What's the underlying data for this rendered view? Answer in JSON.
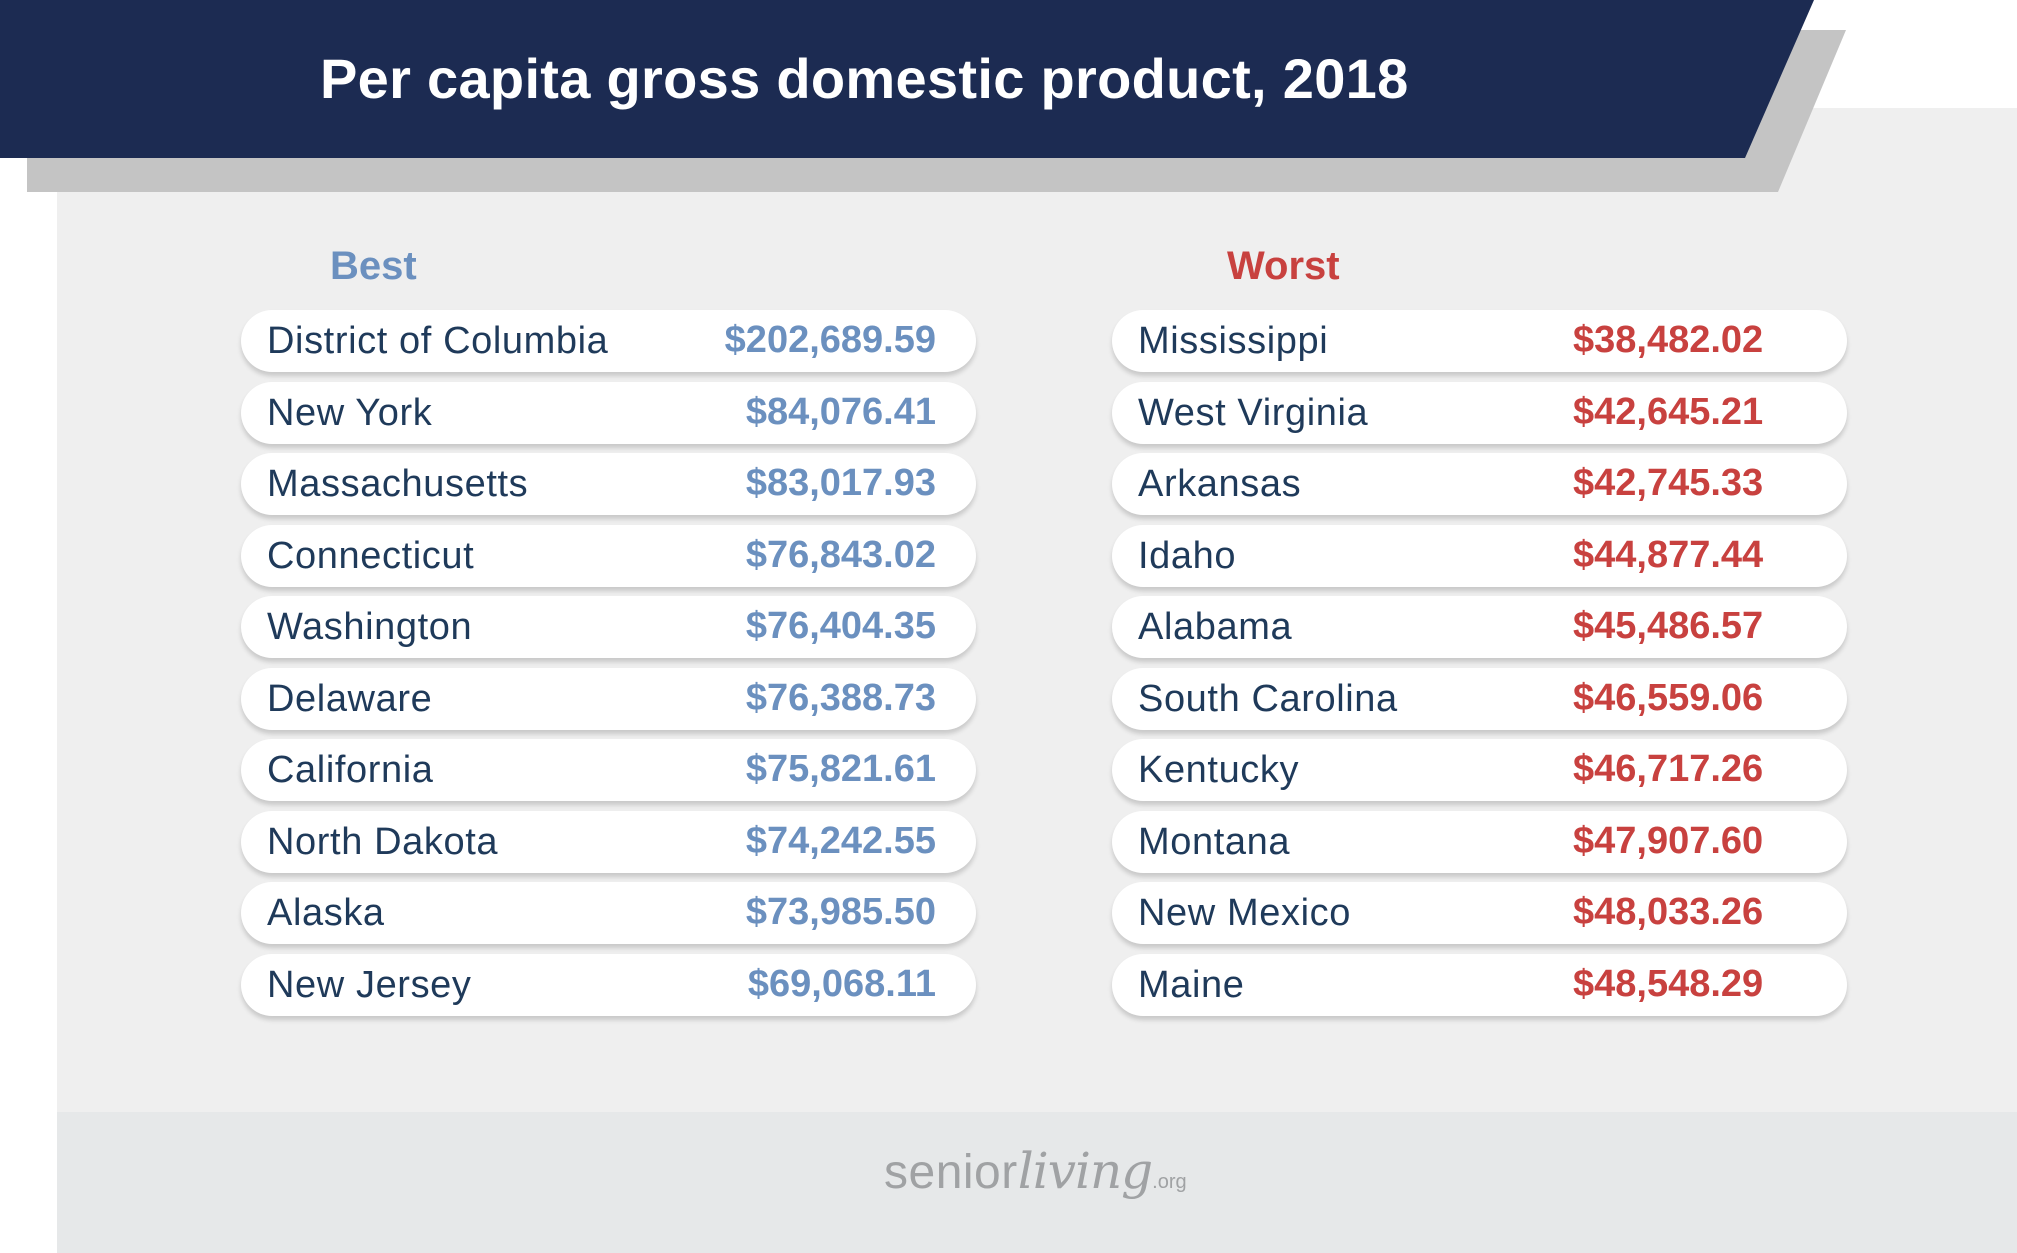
{
  "title": "Per capita gross domestic product, 2018",
  "colors": {
    "banner": "#1c2b52",
    "shadow": "#c4c4c4",
    "best": "#6b90bf",
    "worst": "#c8413f",
    "name": "#1f3a5a"
  },
  "logo": {
    "primary": "senior",
    "secondary": "living",
    "suffix": ".org"
  },
  "chart_data": {
    "type": "table",
    "title": "Per capita gross domestic product, 2018",
    "columns": [
      "Best",
      "Worst"
    ],
    "best": {
      "label": "Best",
      "rows": [
        {
          "state": "District of Columbia",
          "value": 202689.59,
          "display": "$202,689.59"
        },
        {
          "state": "New York",
          "value": 84076.41,
          "display": "$84,076.41"
        },
        {
          "state": "Massachusetts",
          "value": 83017.93,
          "display": "$83,017.93"
        },
        {
          "state": "Connecticut",
          "value": 76843.02,
          "display": "$76,843.02"
        },
        {
          "state": "Washington",
          "value": 76404.35,
          "display": "$76,404.35"
        },
        {
          "state": "Delaware",
          "value": 76388.73,
          "display": "$76,388.73"
        },
        {
          "state": "California",
          "value": 75821.61,
          "display": "$75,821.61"
        },
        {
          "state": "North Dakota",
          "value": 74242.55,
          "display": "$74,242.55"
        },
        {
          "state": "Alaska",
          "value": 73985.5,
          "display": "$73,985.50"
        },
        {
          "state": "New Jersey",
          "value": 69068.11,
          "display": "$69,068.11"
        }
      ]
    },
    "worst": {
      "label": "Worst",
      "rows": [
        {
          "state": "Mississippi",
          "value": 38482.02,
          "display": "$38,482.02"
        },
        {
          "state": "West Virginia",
          "value": 42645.21,
          "display": "$42,645.21"
        },
        {
          "state": "Arkansas",
          "value": 42745.33,
          "display": "$42,745.33"
        },
        {
          "state": "Idaho",
          "value": 44877.44,
          "display": "$44,877.44"
        },
        {
          "state": "Alabama",
          "value": 45486.57,
          "display": "$45,486.57"
        },
        {
          "state": "South Carolina",
          "value": 46559.06,
          "display": "$46,559.06"
        },
        {
          "state": "Kentucky",
          "value": 46717.26,
          "display": "$46,717.26"
        },
        {
          "state": "Montana",
          "value": 47907.6,
          "display": "$47,907.60"
        },
        {
          "state": "New Mexico",
          "value": 48033.26,
          "display": "$48,033.26"
        },
        {
          "state": "Maine",
          "value": 48548.29,
          "display": "$48,548.29"
        }
      ]
    }
  }
}
